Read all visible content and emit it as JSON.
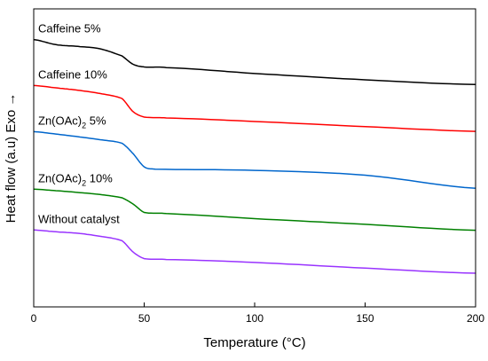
{
  "chart_data": {
    "type": "line",
    "xlabel": "Temperature (°C)",
    "ylabel": "Heat flow (a.u)  Exo →",
    "xlim": [
      0,
      200
    ],
    "xticks": [
      0,
      50,
      100,
      150,
      200
    ],
    "yticks_labeled": false,
    "grid": false,
    "legend": "none (labels placed above each curve)",
    "series": [
      {
        "name": "Caffeine 5%",
        "color": "#000000",
        "points": [
          [
            0,
            0.897
          ],
          [
            10,
            0.88
          ],
          [
            20,
            0.874
          ],
          [
            30,
            0.866
          ],
          [
            40,
            0.842
          ],
          [
            45,
            0.814
          ],
          [
            50,
            0.805
          ],
          [
            60,
            0.803
          ],
          [
            100,
            0.783
          ],
          [
            150,
            0.762
          ],
          [
            200,
            0.746
          ]
        ]
      },
      {
        "name": "Caffeine 10%",
        "color": "#ff0000",
        "points": [
          [
            0,
            0.743
          ],
          [
            10,
            0.735
          ],
          [
            20,
            0.727
          ],
          [
            30,
            0.716
          ],
          [
            40,
            0.699
          ],
          [
            45,
            0.655
          ],
          [
            50,
            0.637
          ],
          [
            60,
            0.634
          ],
          [
            100,
            0.622
          ],
          [
            150,
            0.605
          ],
          [
            200,
            0.589
          ]
        ]
      },
      {
        "name": "Zn(OAc)",
        "name_sub": "2",
        "name_suffix": " 5%",
        "color": "#0066cc",
        "points": [
          [
            0,
            0.588
          ],
          [
            10,
            0.58
          ],
          [
            20,
            0.571
          ],
          [
            30,
            0.561
          ],
          [
            40,
            0.549
          ],
          [
            45,
            0.514
          ],
          [
            50,
            0.47
          ],
          [
            55,
            0.462
          ],
          [
            100,
            0.458
          ],
          [
            150,
            0.442
          ],
          [
            200,
            0.398
          ]
        ]
      },
      {
        "name": "Zn(OAc)",
        "name_sub": "2",
        "name_suffix": " 10%",
        "color": "#008000",
        "points": [
          [
            0,
            0.395
          ],
          [
            10,
            0.39
          ],
          [
            20,
            0.384
          ],
          [
            30,
            0.377
          ],
          [
            40,
            0.366
          ],
          [
            45,
            0.345
          ],
          [
            50,
            0.317
          ],
          [
            60,
            0.313
          ],
          [
            100,
            0.296
          ],
          [
            150,
            0.277
          ],
          [
            200,
            0.257
          ]
        ]
      },
      {
        "name": "Without catalyst",
        "color": "#9933ff",
        "points": [
          [
            0,
            0.258
          ],
          [
            10,
            0.252
          ],
          [
            20,
            0.247
          ],
          [
            30,
            0.237
          ],
          [
            40,
            0.222
          ],
          [
            45,
            0.184
          ],
          [
            50,
            0.162
          ],
          [
            60,
            0.159
          ],
          [
            100,
            0.149
          ],
          [
            150,
            0.13
          ],
          [
            200,
            0.113
          ]
        ]
      }
    ]
  }
}
